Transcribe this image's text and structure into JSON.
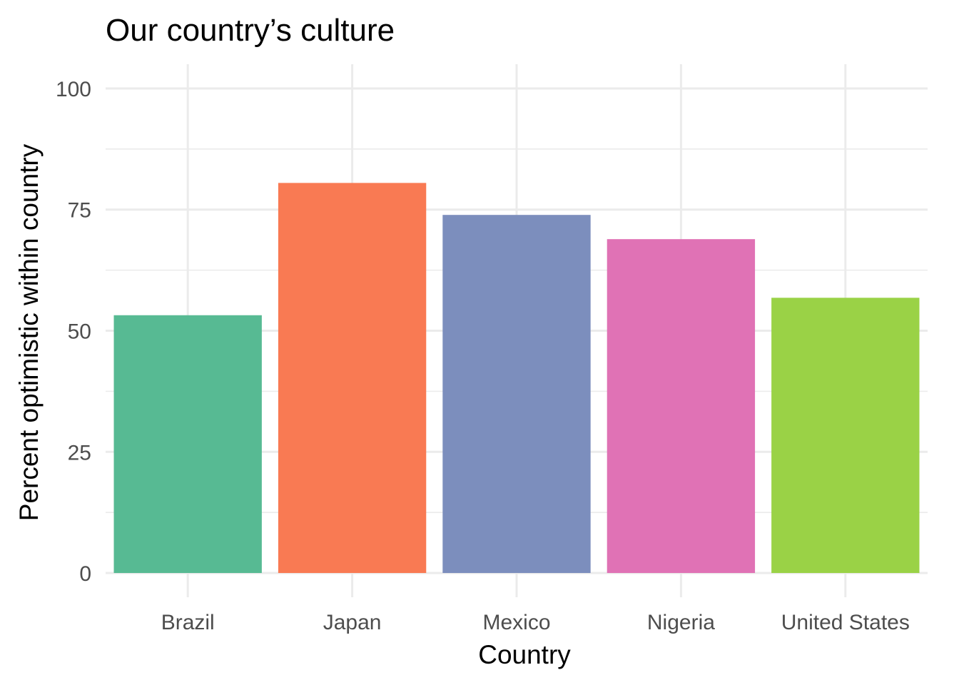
{
  "chart_data": {
    "type": "bar",
    "title": "Our country’s culture",
    "xlabel": "Country",
    "ylabel": "Percent optimistic within country",
    "categories": [
      "Brazil",
      "Japan",
      "Mexico",
      "Nigeria",
      "United States"
    ],
    "values": [
      53.2,
      80.5,
      73.9,
      68.9,
      56.8
    ],
    "colors": [
      "#57ba93",
      "#f97a53",
      "#7c8ebd",
      "#e072b5",
      "#9ad246"
    ],
    "ylim": [
      -5,
      105
    ],
    "yticks": [
      0,
      25,
      50,
      75,
      100
    ],
    "grid": true,
    "legend": "none"
  }
}
